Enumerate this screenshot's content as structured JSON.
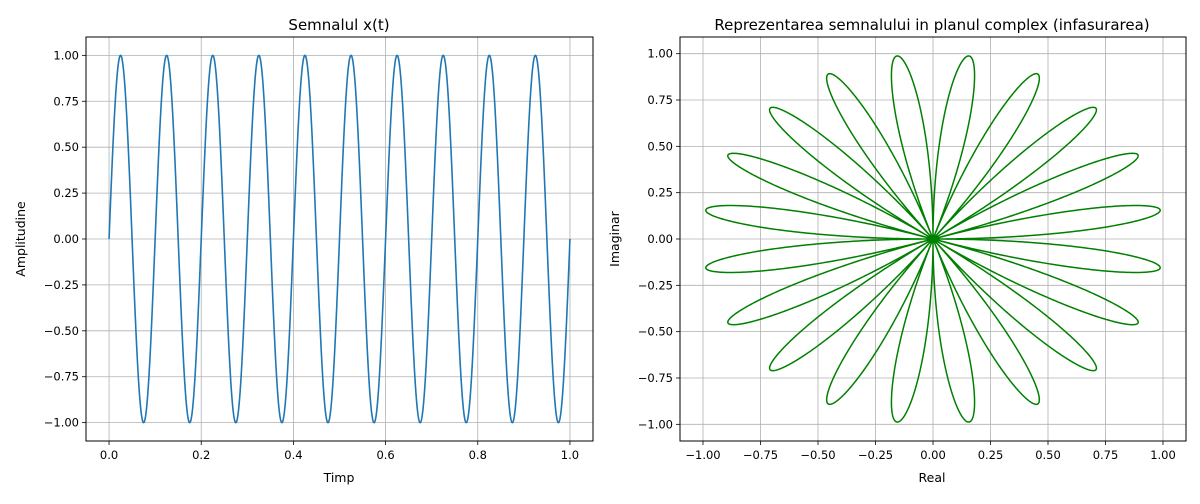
{
  "colors": {
    "signal": "#1f77b4",
    "wrap": "#008000",
    "grid": "#b0b0b0",
    "axis": "#000000"
  },
  "chart_data": [
    {
      "type": "line",
      "title": "Semnalul x(t)",
      "xlabel": "Timp",
      "ylabel": "Amplitudine",
      "grid": true,
      "xlim": [
        -0.05,
        1.05
      ],
      "ylim": [
        -1.1,
        1.1
      ],
      "xticks": [
        0.0,
        0.2,
        0.4,
        0.6,
        0.8,
        1.0
      ],
      "xtick_labels": [
        "0.0",
        "0.2",
        "0.4",
        "0.6",
        "0.8",
        "1.0"
      ],
      "yticks": [
        -1.0,
        -0.75,
        -0.5,
        -0.25,
        0.0,
        0.25,
        0.5,
        0.75,
        1.0
      ],
      "ytick_labels": [
        "−1.00",
        "−0.75",
        "−0.50",
        "−0.25",
        "0.00",
        "0.25",
        "0.50",
        "0.75",
        "1.00"
      ],
      "series": [
        {
          "function": "sin(2*pi*10*t)",
          "frequency_hz": 10,
          "amplitude": 1.0,
          "t_range": [
            0,
            1
          ]
        }
      ]
    },
    {
      "type": "line",
      "title": "Reprezentarea semnalului in planul complex (infasurarea)",
      "xlabel": "Real",
      "ylabel": "Imaginar",
      "grid": true,
      "xlim": [
        -1.1,
        1.1
      ],
      "ylim": [
        -1.09,
        1.09
      ],
      "xticks": [
        -1.0,
        -0.75,
        -0.5,
        -0.25,
        0.0,
        0.25,
        0.5,
        0.75,
        1.0
      ],
      "xtick_labels": [
        "−1.00",
        "−0.75",
        "−0.50",
        "−0.25",
        "0.00",
        "0.25",
        "0.50",
        "0.75",
        "1.00"
      ],
      "yticks": [
        -1.0,
        -0.75,
        -0.5,
        -0.25,
        0.0,
        0.25,
        0.5,
        0.75,
        1.0
      ],
      "ytick_labels": [
        "−1.00",
        "−0.75",
        "−0.50",
        "−0.25",
        "0.00",
        "0.25",
        "0.50",
        "0.75",
        "1.00"
      ],
      "series": [
        {
          "function": "x(t) * exp(-2j*pi*f_w*t)",
          "signal_frequency_hz": 10,
          "winding_frequency_hz": 1,
          "t_range": [
            0,
            1
          ],
          "petals": 20
        }
      ]
    }
  ]
}
